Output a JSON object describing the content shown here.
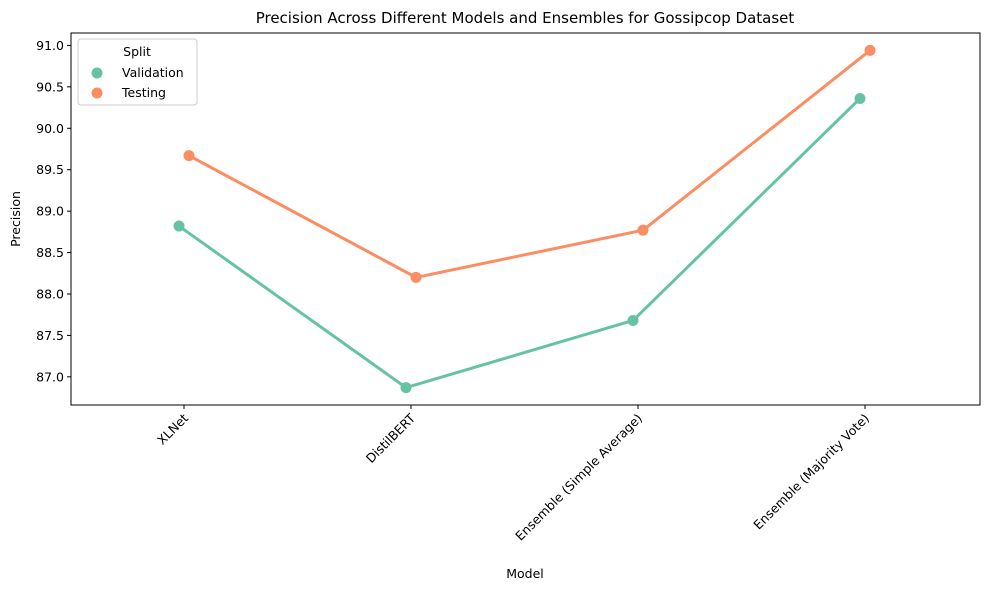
{
  "chart_data": {
    "type": "line",
    "title": "Precision Across Different Models and Ensembles for Gossipcop Dataset",
    "xlabel": "Model",
    "ylabel": "Precision",
    "categories": [
      "XLNet",
      "DistilBERT",
      "Ensemble (Simple Average)",
      "Ensemble (Majority Vote)"
    ],
    "series": [
      {
        "name": "Validation",
        "values": [
          88.82,
          86.87,
          87.68,
          90.36
        ],
        "color": "#66c2a5"
      },
      {
        "name": "Testing",
        "values": [
          89.67,
          88.2,
          88.77,
          90.94
        ],
        "color": "#fc8d62"
      }
    ],
    "y_ticks": [
      87.0,
      87.5,
      88.0,
      88.5,
      89.0,
      89.5,
      90.0,
      90.5,
      91.0
    ],
    "y_tick_labels": [
      "87.0",
      "87.5",
      "88.0",
      "88.5",
      "89.0",
      "89.5",
      "90.0",
      "90.5",
      "91.0"
    ],
    "ylim": [
      86.66,
      91.15
    ],
    "x_tick_rotation": -45,
    "legend": {
      "title": "Split",
      "position": "top-left"
    },
    "grid": false
  }
}
